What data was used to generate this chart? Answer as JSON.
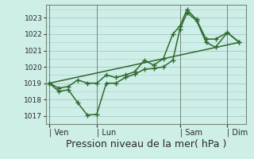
{
  "bg_color": "#ceeee8",
  "grid_color": "#aacccc",
  "line_color": "#2d6a2d",
  "marker_color": "#2d6a2d",
  "xlabel": "Pression niveau de la mer( hPa )",
  "xlabel_fontsize": 9,
  "ylim": [
    1016.5,
    1023.8
  ],
  "yticks": [
    1017,
    1018,
    1019,
    1020,
    1021,
    1022,
    1023
  ],
  "xlim": [
    -0.15,
    8.3
  ],
  "day_positions": [
    0.0,
    2.0,
    5.5,
    7.5
  ],
  "day_labels": [
    "| Ven",
    "| Lun",
    "| Sam",
    "| Dim"
  ],
  "series1_x": [
    0.0,
    0.4,
    0.8,
    1.2,
    1.6,
    2.0,
    2.4,
    2.8,
    3.2,
    3.6,
    4.0,
    4.4,
    4.8,
    5.2,
    5.5,
    5.8,
    6.2,
    6.6,
    7.0,
    7.5,
    8.0
  ],
  "series1_y": [
    1019.0,
    1018.5,
    1018.6,
    1017.8,
    1017.05,
    1017.1,
    1019.0,
    1019.0,
    1019.35,
    1019.55,
    1019.85,
    1019.9,
    1020.0,
    1020.4,
    1022.3,
    1023.3,
    1022.85,
    1021.5,
    1021.2,
    1022.1,
    1021.5
  ],
  "series2_x": [
    0.0,
    8.0
  ],
  "series2_y": [
    1019.0,
    1021.5
  ],
  "series3_x": [
    0.0,
    0.4,
    0.8,
    1.2,
    1.6,
    2.0,
    2.4,
    2.8,
    3.2,
    3.6,
    4.0,
    4.4,
    4.8,
    5.2,
    5.5,
    5.8,
    6.2,
    6.6,
    7.0,
    7.5,
    8.0
  ],
  "series3_y": [
    1019.0,
    1018.7,
    1018.8,
    1019.2,
    1019.0,
    1019.0,
    1019.5,
    1019.35,
    1019.5,
    1019.7,
    1020.4,
    1020.1,
    1020.5,
    1022.0,
    1022.5,
    1023.5,
    1022.9,
    1021.7,
    1021.7,
    1022.1,
    1021.5
  ]
}
